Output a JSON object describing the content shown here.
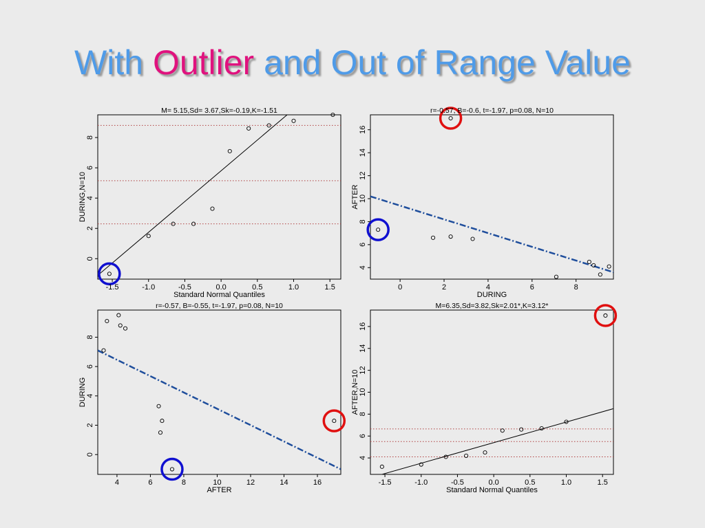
{
  "title": {
    "words": [
      {
        "text": "With",
        "color": "#4f9be8"
      },
      {
        "text": "Outlier",
        "color": "#e0127e"
      },
      {
        "text": "and",
        "color": "#4f9be8"
      },
      {
        "text": "Out of Range",
        "color": "#4f9be8"
      },
      {
        "text": "Value",
        "color": "#4f9be8"
      }
    ]
  },
  "colors": {
    "outlier_circle": "#e01010",
    "out_of_range_circle": "#1010d0",
    "regression_line": "#1f4e9c",
    "reference_line": "#b04040"
  },
  "chart_data": [
    {
      "type": "scatter",
      "title": "M= 5.15,Sd= 3.67,Sk=-0.19,K=-1.51",
      "xlabel": "Standard Normal Quantiles",
      "ylabel": "DURING,N=10",
      "xlim": [
        -1.7,
        1.65
      ],
      "ylim": [
        -1.35,
        9.5
      ],
      "xticks": [
        -1.5,
        -1.0,
        -0.5,
        0.0,
        0.5,
        1.0,
        1.5
      ],
      "xticklabels": [
        "-1.5",
        "-1.0",
        "-0.5",
        "0.0",
        "0.5",
        "1.0",
        "1.5"
      ],
      "yticks": [
        0,
        2,
        4,
        6,
        8
      ],
      "yticklabels": [
        "0",
        "2",
        "4",
        "6",
        "8"
      ],
      "points": [
        [
          -1.54,
          -1.0
        ],
        [
          -1.0,
          1.5
        ],
        [
          -0.66,
          2.3
        ],
        [
          -0.38,
          2.3
        ],
        [
          -0.12,
          3.3
        ],
        [
          0.12,
          7.1
        ],
        [
          0.38,
          8.6
        ],
        [
          0.66,
          8.8
        ],
        [
          1.0,
          9.1
        ],
        [
          1.54,
          9.5
        ]
      ],
      "fit_line": [
        [
          -1.7,
          -1.1
        ],
        [
          0.91,
          9.5
        ]
      ],
      "ref_lines": [
        2.3,
        5.15,
        8.8
      ],
      "highlight": [
        {
          "point": 0,
          "kind": "out_of_range"
        }
      ]
    },
    {
      "type": "scatter",
      "title": "r=-0.57, B=-0.6, t=-1.97, p=0.08, N=10",
      "xlabel": "DURING",
      "ylabel": "AFTER",
      "xlim": [
        -1.35,
        9.7
      ],
      "ylim": [
        3.0,
        17.3
      ],
      "xticks": [
        0,
        2,
        4,
        6,
        8
      ],
      "xticklabels": [
        "0",
        "2",
        "4",
        "6",
        "8"
      ],
      "yticks": [
        4,
        6,
        8,
        10,
        12,
        14,
        16
      ],
      "yticklabels": [
        "4",
        "6",
        "8",
        "10",
        "12",
        "14",
        "16"
      ],
      "points": [
        [
          -1.0,
          7.3
        ],
        [
          1.5,
          6.6
        ],
        [
          2.3,
          17.0
        ],
        [
          2.3,
          6.7
        ],
        [
          3.3,
          6.5
        ],
        [
          7.1,
          3.2
        ],
        [
          8.6,
          4.5
        ],
        [
          8.8,
          4.2
        ],
        [
          9.1,
          3.4
        ],
        [
          9.5,
          4.1
        ]
      ],
      "fit_line": [
        [
          -1.35,
          10.2
        ],
        [
          9.7,
          3.6
        ]
      ],
      "ref_lines": [],
      "highlight": [
        {
          "point": 0,
          "kind": "out_of_range"
        },
        {
          "point": 2,
          "kind": "outlier"
        }
      ]
    },
    {
      "type": "scatter",
      "title": "r=-0.57, B=-0.55, t=-1.97, p=0.08, N=10",
      "xlabel": "AFTER",
      "ylabel": "DURING",
      "xlim": [
        2.85,
        17.4
      ],
      "ylim": [
        -1.35,
        9.85
      ],
      "xticks": [
        4,
        6,
        8,
        10,
        12,
        14,
        16
      ],
      "xticklabels": [
        "4",
        "6",
        "8",
        "10",
        "12",
        "14",
        "16"
      ],
      "yticks": [
        0,
        2,
        4,
        6,
        8
      ],
      "yticklabels": [
        "0",
        "2",
        "4",
        "6",
        "8"
      ],
      "points": [
        [
          3.2,
          7.1
        ],
        [
          3.4,
          9.1
        ],
        [
          4.1,
          9.5
        ],
        [
          4.2,
          8.8
        ],
        [
          4.5,
          8.6
        ],
        [
          6.5,
          3.3
        ],
        [
          6.6,
          1.5
        ],
        [
          6.7,
          2.3
        ],
        [
          7.3,
          -1.0
        ],
        [
          17.0,
          2.3
        ]
      ],
      "fit_line": [
        [
          2.85,
          7.1
        ],
        [
          17.4,
          -1.0
        ]
      ],
      "ref_lines": [],
      "highlight": [
        {
          "point": 8,
          "kind": "out_of_range"
        },
        {
          "point": 9,
          "kind": "outlier"
        }
      ]
    },
    {
      "type": "scatter",
      "title": "M=6.35,Sd=3.82,Sk=2.01*,K=3.12*",
      "xlabel": "Standard Normal Quantiles",
      "ylabel": "AFTER,N=10",
      "xlim": [
        -1.7,
        1.65
      ],
      "ylim": [
        2.5,
        17.5
      ],
      "xticks": [
        -1.5,
        -1.0,
        -0.5,
        0.0,
        0.5,
        1.0,
        1.5
      ],
      "xticklabels": [
        "-1.5",
        "-1.0",
        "-0.5",
        "0.0",
        "0.5",
        "1.0",
        "1.5"
      ],
      "yticks": [
        4,
        6,
        8,
        10,
        12,
        14,
        16
      ],
      "yticklabels": [
        "4",
        "6",
        "8",
        "10",
        "12",
        "14",
        "16"
      ],
      "points": [
        [
          -1.54,
          3.2
        ],
        [
          -1.0,
          3.4
        ],
        [
          -0.66,
          4.1
        ],
        [
          -0.38,
          4.2
        ],
        [
          -0.12,
          4.5
        ],
        [
          0.12,
          6.5
        ],
        [
          0.38,
          6.6
        ],
        [
          0.66,
          6.7
        ],
        [
          1.0,
          7.3
        ],
        [
          1.54,
          17.0
        ]
      ],
      "fit_line": [
        [
          -1.7,
          2.2
        ],
        [
          1.65,
          8.5
        ]
      ],
      "ref_lines": [
        4.1,
        5.5,
        6.65
      ],
      "highlight": [
        {
          "point": 9,
          "kind": "outlier"
        }
      ]
    }
  ]
}
